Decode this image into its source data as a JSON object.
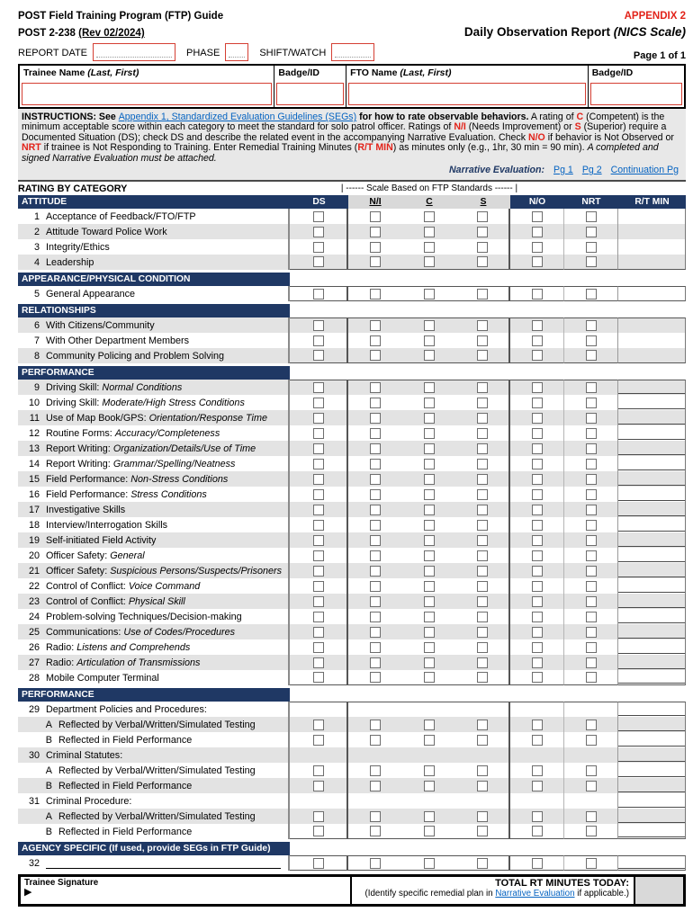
{
  "colors": {
    "navy": "#1f3864",
    "red": "#e2231a",
    "red_box_border": "#d43f33",
    "link_blue": "#0563c1",
    "stripe_gray": "#e3e3e3",
    "header_gray": "#d9d9d9"
  },
  "header": {
    "program_title": "POST Field Training Program (FTP) Guide",
    "appendix": "APPENDIX 2",
    "form_number": "POST 2-238 ",
    "form_rev": "(Rev 02/2024)",
    "report_title": "Daily Observation Report ",
    "report_title_scale": "(NICS Scale)",
    "page_label": "Page 1 of 1"
  },
  "report_fields": {
    "report_date_label": "REPORT DATE",
    "report_date_value": "",
    "phase_label": "PHASE",
    "phase_value": "",
    "shift_label": "SHIFT/WATCH",
    "shift_value": ""
  },
  "name_table": {
    "columns": [
      {
        "label": "Trainee Name ",
        "italic": "(Last, First)",
        "value": "",
        "width": "38.4%",
        "name": "trainee-name"
      },
      {
        "label": "Badge/ID",
        "italic": "",
        "value": "",
        "width": "10.8%",
        "name": "trainee-badge"
      },
      {
        "label": "FTO Name ",
        "italic": "(Last, First)",
        "value": "",
        "width": "36.4%",
        "name": "fto-name"
      },
      {
        "label": "Badge/ID",
        "italic": "",
        "value": "",
        "width": "14.4%",
        "name": "fto-badge"
      }
    ]
  },
  "instructions": {
    "segments": [
      {
        "t": "INSTRUCTIONS: See ",
        "s": "b"
      },
      {
        "t": "Appendix 1, Standardized Evaluation Guidelines (SEGs)",
        "s": "link"
      },
      {
        "t": " for how to rate observable behaviors.",
        "s": "b"
      },
      {
        "t": " A rating of ",
        "s": "p"
      },
      {
        "t": "C",
        "s": "red"
      },
      {
        "t": " (Competent) is the minimum acceptable score within each category to meet the standard for solo patrol officer. Ratings of ",
        "s": "p"
      },
      {
        "t": "N/I",
        "s": "red"
      },
      {
        "t": " (Needs Improvement) or ",
        "s": "p"
      },
      {
        "t": "S",
        "s": "red"
      },
      {
        "t": " (Superior) require a Documented Situation (DS); check DS and describe the related event in the accompanying Narrative Evaluation. Check ",
        "s": "p"
      },
      {
        "t": "N/O",
        "s": "red"
      },
      {
        "t": " if behavior is Not Observed or ",
        "s": "p"
      },
      {
        "t": "NRT",
        "s": "red"
      },
      {
        "t": " if trainee is Not Responding to Training. Enter Remedial Training Minutes (",
        "s": "p"
      },
      {
        "t": "R/T MIN",
        "s": "red"
      },
      {
        "t": ") as minutes only (e.g., 1hr, 30 min = 90 min). ",
        "s": "p"
      },
      {
        "t": "A completed and signed Narrative Evaluation must be attached.",
        "s": "i"
      }
    ],
    "narrative_label": "Narrative Evaluation:",
    "narrative_links": [
      "Pg 1",
      "Pg 2",
      "Continuation Pg"
    ]
  },
  "scale_caption": {
    "left": "RATING BY CATEGORY",
    "center": "|  ------ Scale Based on FTP Standards ------  |"
  },
  "columns": {
    "ds": "DS",
    "ni": "N/I",
    "c": "C",
    "s": "S",
    "no": "N/O",
    "nrt": "NRT",
    "rt": "R/T MIN"
  },
  "table": {
    "rows": [
      {
        "type": "cols",
        "label": "ATTITUDE"
      },
      {
        "type": "item",
        "id": "1",
        "num": "1",
        "label": "Acceptance of Feedback/FTO/FTP",
        "italic": "",
        "shaded": false,
        "boxes": true,
        "rt_line": false
      },
      {
        "type": "item",
        "id": "2",
        "num": "2",
        "label": "Attitude Toward Police Work",
        "italic": "",
        "shaded": true,
        "boxes": true,
        "rt_line": false
      },
      {
        "type": "item",
        "id": "3",
        "num": "3",
        "label": "Integrity/Ethics",
        "italic": "",
        "shaded": false,
        "boxes": true,
        "rt_line": false
      },
      {
        "type": "item",
        "id": "4",
        "num": "4",
        "label": "Leadership",
        "italic": "",
        "shaded": true,
        "boxes": true,
        "rt_line": false,
        "grpbot": true
      },
      {
        "type": "sec",
        "label": "APPEARANCE/PHYSICAL CONDITION"
      },
      {
        "type": "item",
        "id": "5",
        "num": "5",
        "label": "General Appearance",
        "italic": "",
        "shaded": false,
        "boxes": true,
        "rt_line": false,
        "grptop": true,
        "grpbot": true
      },
      {
        "type": "sec",
        "label": "RELATIONSHIPS"
      },
      {
        "type": "item",
        "id": "6",
        "num": "6",
        "label": "With Citizens/Community",
        "italic": "",
        "shaded": true,
        "boxes": true,
        "rt_line": false,
        "grptop": true
      },
      {
        "type": "item",
        "id": "7",
        "num": "7",
        "label": "With Other Department Members",
        "italic": "",
        "shaded": false,
        "boxes": true,
        "rt_line": false
      },
      {
        "type": "item",
        "id": "8",
        "num": "8",
        "label": "Community Policing and Problem Solving",
        "italic": "",
        "shaded": true,
        "boxes": true,
        "rt_line": false,
        "grpbot": true
      },
      {
        "type": "sec",
        "label": "PERFORMANCE"
      },
      {
        "type": "item",
        "id": "9",
        "num": "9",
        "label": "Driving Skill: ",
        "italic": "Normal Conditions",
        "shaded": true,
        "boxes": true,
        "rt_line": true,
        "grptop": true
      },
      {
        "type": "item",
        "id": "10",
        "num": "10",
        "label": "Driving Skill: ",
        "italic": "Moderate/High Stress Conditions",
        "shaded": false,
        "boxes": true,
        "rt_line": true
      },
      {
        "type": "item",
        "id": "11",
        "num": "11",
        "label": "Use of Map Book/GPS: ",
        "italic": "Orientation/Response Time",
        "shaded": true,
        "boxes": true,
        "rt_line": true
      },
      {
        "type": "item",
        "id": "12",
        "num": "12",
        "label": "Routine Forms: ",
        "italic": "Accuracy/Completeness",
        "shaded": false,
        "boxes": true,
        "rt_line": true
      },
      {
        "type": "item",
        "id": "13",
        "num": "13",
        "label": "Report Writing: ",
        "italic": "Organization/Details/Use of Time",
        "shaded": true,
        "boxes": true,
        "rt_line": true
      },
      {
        "type": "item",
        "id": "14",
        "num": "14",
        "label": "Report Writing: ",
        "italic": "Grammar/Spelling/Neatness",
        "shaded": false,
        "boxes": true,
        "rt_line": true
      },
      {
        "type": "item",
        "id": "15",
        "num": "15",
        "label": "Field Performance: ",
        "italic": "Non-Stress Conditions",
        "shaded": true,
        "boxes": true,
        "rt_line": true
      },
      {
        "type": "item",
        "id": "16",
        "num": "16",
        "label": "Field Performance: ",
        "italic": "Stress Conditions",
        "shaded": false,
        "boxes": true,
        "rt_line": true
      },
      {
        "type": "item",
        "id": "17",
        "num": "17",
        "label": "Investigative Skills",
        "italic": "",
        "shaded": true,
        "boxes": true,
        "rt_line": true
      },
      {
        "type": "item",
        "id": "18",
        "num": "18",
        "label": "Interview/Interrogation Skills",
        "italic": "",
        "shaded": false,
        "boxes": true,
        "rt_line": true
      },
      {
        "type": "item",
        "id": "19",
        "num": "19",
        "label": "Self-initiated Field Activity",
        "italic": "",
        "shaded": true,
        "boxes": true,
        "rt_line": true
      },
      {
        "type": "item",
        "id": "20",
        "num": "20",
        "label": "Officer Safety: ",
        "italic": "General",
        "shaded": false,
        "boxes": true,
        "rt_line": true
      },
      {
        "type": "item",
        "id": "21",
        "num": "21",
        "label": "Officer Safety: ",
        "italic": "Suspicious Persons/Suspects/Prisoners",
        "shaded": true,
        "boxes": true,
        "rt_line": true
      },
      {
        "type": "item",
        "id": "22",
        "num": "22",
        "label": "Control of Conflict: ",
        "italic": "Voice Command",
        "shaded": false,
        "boxes": true,
        "rt_line": true
      },
      {
        "type": "item",
        "id": "23",
        "num": "23",
        "label": "Control of Conflict: ",
        "italic": "Physical Skill",
        "shaded": true,
        "boxes": true,
        "rt_line": true
      },
      {
        "type": "item",
        "id": "24",
        "num": "24",
        "label": "Problem-solving Techniques/Decision-making",
        "italic": "",
        "shaded": false,
        "boxes": true,
        "rt_line": true
      },
      {
        "type": "item",
        "id": "25",
        "num": "25",
        "label": "Communications: ",
        "italic": "Use of Codes/Procedures",
        "shaded": true,
        "boxes": true,
        "rt_line": true
      },
      {
        "type": "item",
        "id": "26",
        "num": "26",
        "label": "Radio: ",
        "italic": "Listens and Comprehends",
        "shaded": false,
        "boxes": true,
        "rt_line": true
      },
      {
        "type": "item",
        "id": "27",
        "num": "27",
        "label": "Radio: ",
        "italic": "Articulation of Transmissions",
        "shaded": true,
        "boxes": true,
        "rt_line": true
      },
      {
        "type": "item",
        "id": "28",
        "num": "28",
        "label": "Mobile Computer Terminal",
        "italic": "",
        "shaded": false,
        "boxes": true,
        "rt_line": true,
        "grpbot": true
      },
      {
        "type": "sec",
        "label": "PERFORMANCE"
      },
      {
        "type": "item",
        "id": "29",
        "num": "29",
        "label": "Department Policies and Procedures:",
        "italic": "",
        "shaded": false,
        "boxes": false,
        "rt_line": true,
        "grptop": true
      },
      {
        "type": "item",
        "id": "29a",
        "num": "A",
        "sub": true,
        "label": "Reflected by Verbal/Written/Simulated Testing",
        "italic": "",
        "shaded": true,
        "boxes": true,
        "rt_line": true
      },
      {
        "type": "item",
        "id": "29b",
        "num": "B",
        "sub": true,
        "label": "Reflected in Field Performance",
        "italic": "",
        "shaded": false,
        "boxes": true,
        "rt_line": true
      },
      {
        "type": "item",
        "id": "30",
        "num": "30",
        "label": "Criminal Statutes:",
        "italic": "",
        "shaded": true,
        "boxes": false,
        "rt_line": true
      },
      {
        "type": "item",
        "id": "30a",
        "num": "A",
        "sub": true,
        "label": "Reflected by Verbal/Written/Simulated Testing",
        "italic": "",
        "shaded": false,
        "boxes": true,
        "rt_line": true
      },
      {
        "type": "item",
        "id": "30b",
        "num": "B",
        "sub": true,
        "label": "Reflected in Field Performance",
        "italic": "",
        "shaded": true,
        "boxes": true,
        "rt_line": true
      },
      {
        "type": "item",
        "id": "31",
        "num": "31",
        "label": "Criminal Procedure:",
        "italic": "",
        "shaded": false,
        "boxes": false,
        "rt_line": true
      },
      {
        "type": "item",
        "id": "31a",
        "num": "A",
        "sub": true,
        "label": "Reflected by Verbal/Written/Simulated Testing",
        "italic": "",
        "shaded": true,
        "boxes": true,
        "rt_line": true
      },
      {
        "type": "item",
        "id": "31b",
        "num": "B",
        "sub": true,
        "label": "Reflected in Field Performance",
        "italic": "",
        "shaded": false,
        "boxes": true,
        "rt_line": true,
        "grpbot": true
      },
      {
        "type": "sec",
        "label": "AGENCY SPECIFIC (If used, provide SEGs in FTP Guide)"
      },
      {
        "type": "item",
        "id": "32",
        "num": "32",
        "label": "",
        "italic": "",
        "blank": true,
        "shaded": false,
        "boxes": true,
        "rt_line": true,
        "grptop": true,
        "grpbot": true
      }
    ]
  },
  "footer": {
    "signature_label": "Trainee Signature",
    "signature_arrow": "▶",
    "total_label": "TOTAL RT MINUTES TODAY:",
    "note_pre": "(Identify specific remedial plan in ",
    "note_link": "Narrative Evaluation",
    "note_post": " if applicable.)",
    "total_value": ""
  }
}
